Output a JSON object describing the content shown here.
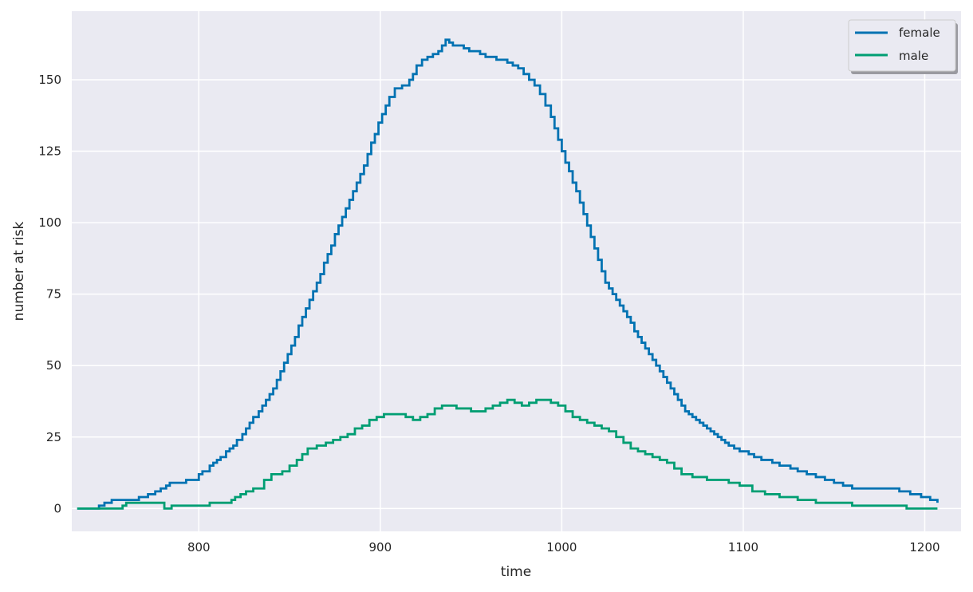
{
  "chart_data": {
    "type": "line",
    "line_style": "step",
    "xlabel": "time",
    "ylabel": "number at risk",
    "xlim": [
      730,
      1220
    ],
    "ylim": [
      -8,
      174
    ],
    "x_ticks": [
      800,
      900,
      1000,
      1100,
      1200
    ],
    "y_ticks": [
      0,
      25,
      50,
      75,
      100,
      125,
      150
    ],
    "grid": true,
    "legend_position": "top-right",
    "colors": {
      "background": "#eaeaf2",
      "grid": "#ffffff",
      "female": "#0072b2",
      "male": "#009e73",
      "text": "#262626"
    },
    "series": [
      {
        "name": "female",
        "x": [
          733,
          745,
          748,
          752,
          760,
          767,
          772,
          776,
          779,
          782,
          784,
          793,
          795,
          798,
          800,
          802,
          806,
          808,
          810,
          812,
          815,
          817,
          819,
          821,
          824,
          826,
          828,
          830,
          833,
          835,
          837,
          839,
          841,
          843,
          845,
          847,
          849,
          851,
          853,
          855,
          857,
          859,
          861,
          863,
          865,
          867,
          869,
          871,
          873,
          875,
          877,
          879,
          881,
          883,
          885,
          887,
          889,
          891,
          893,
          895,
          897,
          899,
          901,
          903,
          905,
          908,
          912,
          916,
          918,
          920,
          923,
          926,
          929,
          932,
          934,
          936,
          938,
          940,
          943,
          946,
          949,
          952,
          955,
          958,
          961,
          964,
          967,
          970,
          973,
          976,
          979,
          982,
          985,
          988,
          991,
          994,
          996,
          998,
          1000,
          1002,
          1004,
          1006,
          1008,
          1010,
          1012,
          1014,
          1016,
          1018,
          1020,
          1022,
          1024,
          1026,
          1028,
          1030,
          1032,
          1034,
          1036,
          1038,
          1040,
          1042,
          1044,
          1046,
          1048,
          1050,
          1052,
          1054,
          1056,
          1058,
          1060,
          1062,
          1064,
          1066,
          1068,
          1070,
          1072,
          1074,
          1076,
          1078,
          1080,
          1082,
          1084,
          1086,
          1088,
          1090,
          1092,
          1095,
          1098,
          1100,
          1103,
          1106,
          1110,
          1116,
          1120,
          1126,
          1130,
          1135,
          1140,
          1145,
          1150,
          1155,
          1160,
          1166,
          1172,
          1180,
          1186,
          1192,
          1198,
          1203,
          1207
        ],
        "values": [
          0,
          1,
          2,
          3,
          3,
          4,
          5,
          6,
          7,
          8,
          9,
          10,
          10,
          10,
          12,
          13,
          15,
          16,
          17,
          18,
          20,
          21,
          22,
          24,
          26,
          28,
          30,
          32,
          34,
          36,
          38,
          40,
          42,
          45,
          48,
          51,
          54,
          57,
          60,
          64,
          67,
          70,
          73,
          76,
          79,
          82,
          86,
          89,
          92,
          96,
          99,
          102,
          105,
          108,
          111,
          114,
          117,
          120,
          124,
          128,
          131,
          135,
          138,
          141,
          144,
          147,
          148,
          150,
          152,
          155,
          157,
          158,
          159,
          160,
          162,
          164,
          163,
          162,
          162,
          161,
          160,
          160,
          159,
          158,
          158,
          157,
          157,
          156,
          155,
          154,
          152,
          150,
          148,
          145,
          141,
          137,
          133,
          129,
          125,
          121,
          118,
          114,
          111,
          107,
          103,
          99,
          95,
          91,
          87,
          83,
          79,
          77,
          75,
          73,
          71,
          69,
          67,
          65,
          62,
          60,
          58,
          56,
          54,
          52,
          50,
          48,
          46,
          44,
          42,
          40,
          38,
          36,
          34,
          33,
          32,
          31,
          30,
          29,
          28,
          27,
          26,
          25,
          24,
          23,
          22,
          21,
          20,
          20,
          19,
          18,
          17,
          16,
          15,
          14,
          13,
          12,
          11,
          10,
          9,
          8,
          7,
          7,
          7,
          7,
          6,
          5,
          4,
          3,
          2
        ]
      },
      {
        "name": "male",
        "x": [
          733,
          758,
          760,
          778,
          781,
          785,
          800,
          806,
          818,
          820,
          823,
          826,
          830,
          836,
          840,
          846,
          850,
          854,
          857,
          860,
          865,
          870,
          874,
          878,
          882,
          886,
          890,
          894,
          898,
          902,
          906,
          910,
          914,
          918,
          922,
          926,
          930,
          934,
          938,
          942,
          946,
          950,
          954,
          958,
          962,
          966,
          970,
          974,
          978,
          982,
          986,
          990,
          994,
          998,
          1002,
          1006,
          1010,
          1014,
          1018,
          1022,
          1026,
          1030,
          1034,
          1038,
          1042,
          1046,
          1050,
          1054,
          1058,
          1062,
          1066,
          1072,
          1080,
          1086,
          1092,
          1098,
          1105,
          1112,
          1120,
          1130,
          1140,
          1150,
          1160,
          1172,
          1190,
          1207
        ],
        "values": [
          0,
          1,
          2,
          2,
          0,
          1,
          1,
          2,
          3,
          4,
          5,
          6,
          7,
          10,
          12,
          13,
          15,
          17,
          19,
          21,
          22,
          23,
          24,
          25,
          26,
          28,
          29,
          31,
          32,
          33,
          33,
          33,
          32,
          31,
          32,
          33,
          35,
          36,
          36,
          35,
          35,
          34,
          34,
          35,
          36,
          37,
          38,
          37,
          36,
          37,
          38,
          38,
          37,
          36,
          34,
          32,
          31,
          30,
          29,
          28,
          27,
          25,
          23,
          21,
          20,
          19,
          18,
          17,
          16,
          14,
          12,
          11,
          10,
          10,
          9,
          8,
          6,
          5,
          4,
          3,
          2,
          2,
          1,
          1,
          0,
          0
        ]
      }
    ]
  }
}
